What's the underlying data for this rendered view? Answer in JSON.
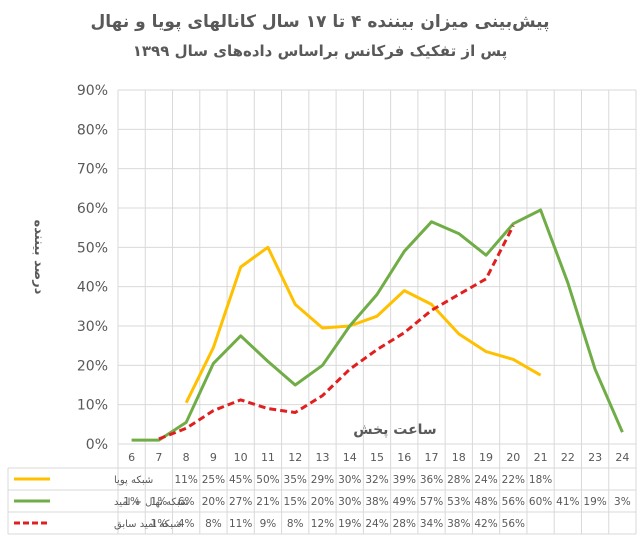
{
  "chart_data": {
    "type": "line",
    "title": "پیش‌بینی میزان بیننده ۴ تا ۱۷ سال کانالهای پویا و نهال",
    "subtitle": "پس از تفکیک فرکانس براساس داده‌های سال ۱۳۹۹",
    "xlabel": "ساعت پخش",
    "ylabel": "درصد بیننده",
    "ylim": [
      0,
      90
    ],
    "y_ticks": [
      "0%",
      "10%",
      "20%",
      "30%",
      "40%",
      "50%",
      "60%",
      "70%",
      "80%",
      "90%"
    ],
    "categories": [
      "6",
      "7",
      "8",
      "9",
      "10",
      "11",
      "12",
      "13",
      "14",
      "15",
      "16",
      "17",
      "18",
      "19",
      "20",
      "21",
      "22",
      "23",
      "24"
    ],
    "grid": true,
    "legend": "data table below chart",
    "series": [
      {
        "name": "شبکه پویا",
        "color": "#FFC000",
        "style": "solid",
        "values": [
          null,
          null,
          10.5,
          24.5,
          45,
          50,
          35.5,
          29.5,
          30,
          32.5,
          39,
          35.5,
          28,
          23.5,
          21.5,
          17.5,
          null,
          null,
          null
        ],
        "labels": [
          "",
          "",
          "11%",
          "25%",
          "45%",
          "50%",
          "35%",
          "29%",
          "30%",
          "32%",
          "39%",
          "36%",
          "28%",
          "24%",
          "22%",
          "18%",
          "",
          "",
          ""
        ]
      },
      {
        "name": "شبکه نهال + امید",
        "color": "#70AD47",
        "style": "solid",
        "values": [
          1,
          1,
          5.5,
          20.5,
          27.5,
          21,
          15,
          20,
          30,
          38,
          49,
          56.5,
          53.5,
          48,
          56,
          59.5,
          41,
          19,
          3
        ],
        "labels": [
          "1%",
          "1%",
          "6%",
          "20%",
          "27%",
          "21%",
          "15%",
          "20%",
          "30%",
          "38%",
          "49%",
          "57%",
          "53%",
          "48%",
          "56%",
          "60%",
          "41%",
          "19%",
          "3%"
        ]
      },
      {
        "name": "شبکه امید سابق",
        "color": "#E02020",
        "style": "dashed",
        "values": [
          null,
          1.3,
          4,
          8.5,
          11.2,
          9,
          8,
          12.3,
          19,
          24,
          28.3,
          34,
          38,
          42,
          55.5,
          null,
          null,
          null,
          null
        ],
        "labels": [
          "",
          "1%",
          "4%",
          "8%",
          "11%",
          "9%",
          "8%",
          "12%",
          "19%",
          "24%",
          "28%",
          "34%",
          "38%",
          "42%",
          "56%",
          "",
          "",
          "",
          ""
        ]
      }
    ]
  }
}
